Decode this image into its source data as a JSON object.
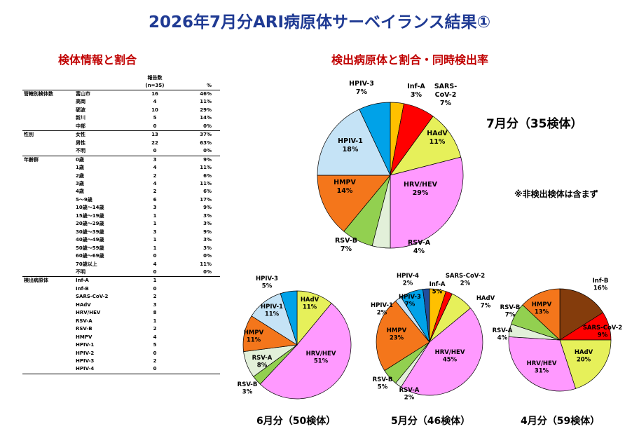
{
  "title": "2026年7月分ARI病原体サーベイランス結果①",
  "sections": {
    "left": "検体情報と割合",
    "right": "検出病原体と割合・同時検出率"
  },
  "table": {
    "header_count_line1": "報告数",
    "header_count_line2": "(n=35)",
    "header_pct": "%",
    "rows": [
      {
        "group": "管轄別検体数",
        "cat": "富山市",
        "n": "16",
        "pct": "46%"
      },
      {
        "group": "",
        "cat": "高岡",
        "n": "4",
        "pct": "11%"
      },
      {
        "group": "",
        "cat": "砺波",
        "n": "10",
        "pct": "29%"
      },
      {
        "group": "",
        "cat": "新川",
        "n": "5",
        "pct": "14%"
      },
      {
        "group": "",
        "cat": "中部",
        "n": "0",
        "pct": "0%"
      },
      {
        "group": "性別",
        "cat": "女性",
        "n": "13",
        "pct": "37%"
      },
      {
        "group": "",
        "cat": "男性",
        "n": "22",
        "pct": "63%"
      },
      {
        "group": "",
        "cat": "不明",
        "n": "0",
        "pct": "0%"
      },
      {
        "group": "年齢群",
        "cat": "0歳",
        "n": "3",
        "pct": "9%"
      },
      {
        "group": "",
        "cat": "1歳",
        "n": "4",
        "pct": "11%"
      },
      {
        "group": "",
        "cat": "2歳",
        "n": "2",
        "pct": "6%"
      },
      {
        "group": "",
        "cat": "3歳",
        "n": "4",
        "pct": "11%"
      },
      {
        "group": "",
        "cat": "4歳",
        "n": "2",
        "pct": "6%"
      },
      {
        "group": "",
        "cat": "5～9歳",
        "n": "6",
        "pct": "17%"
      },
      {
        "group": "",
        "cat": "10歳～14歳",
        "n": "3",
        "pct": "9%"
      },
      {
        "group": "",
        "cat": "15歳～19歳",
        "n": "1",
        "pct": "3%"
      },
      {
        "group": "",
        "cat": "20歳～29歳",
        "n": "1",
        "pct": "3%"
      },
      {
        "group": "",
        "cat": "30歳～39歳",
        "n": "3",
        "pct": "9%"
      },
      {
        "group": "",
        "cat": "40歳～49歳",
        "n": "1",
        "pct": "3%"
      },
      {
        "group": "",
        "cat": "50歳～59歳",
        "n": "1",
        "pct": "3%"
      },
      {
        "group": "",
        "cat": "60歳～69歳",
        "n": "0",
        "pct": "0%"
      },
      {
        "group": "",
        "cat": "70歳以上",
        "n": "4",
        "pct": "11%"
      },
      {
        "group": "",
        "cat": "不明",
        "n": "0",
        "pct": "0%"
      },
      {
        "group": "検出病原体",
        "cat": "Inf-A",
        "n": "1",
        "pct": ""
      },
      {
        "group": "",
        "cat": "Inf-B",
        "n": "0",
        "pct": ""
      },
      {
        "group": "",
        "cat": "SARS-CoV-2",
        "n": "2",
        "pct": ""
      },
      {
        "group": "",
        "cat": "HAdV",
        "n": "3",
        "pct": ""
      },
      {
        "group": "",
        "cat": "HRV/HEV",
        "n": "8",
        "pct": ""
      },
      {
        "group": "",
        "cat": "RSV-A",
        "n": "1",
        "pct": ""
      },
      {
        "group": "",
        "cat": "RSV-B",
        "n": "2",
        "pct": ""
      },
      {
        "group": "",
        "cat": "HMPV",
        "n": "4",
        "pct": ""
      },
      {
        "group": "",
        "cat": "HPIV-1",
        "n": "5",
        "pct": ""
      },
      {
        "group": "",
        "cat": "HPIV-2",
        "n": "0",
        "pct": ""
      },
      {
        "group": "",
        "cat": "HPIV-3",
        "n": "2",
        "pct": ""
      },
      {
        "group": "",
        "cat": "HPIV-4",
        "n": "0",
        "pct": ""
      }
    ]
  },
  "notes": {
    "month7": "7月分（35検体）",
    "excluded": "※非検出検体は含まず"
  },
  "captions": {
    "june": "6月分（50検体）",
    "may": "5月分（46検体）",
    "april": "4月分（59検体）"
  },
  "colors": {
    "Inf-A": "#ffc000",
    "Inf-B": "#843c0c",
    "SARS-CoV-2": "#ff0000",
    "HAdV": "#e6f05a",
    "HRV/HEV": "#ff99ff",
    "RSV-A": "#e2f0d9",
    "RSV-B": "#92d050",
    "HMPV": "#f4761b",
    "HPIV-1": "#c5e3f6",
    "HPIV-3": "#00a2e8",
    "HPIV-4": "#1f4e9e"
  },
  "chart_data": [
    {
      "type": "pie",
      "id": "july",
      "slices": [
        {
          "label": "Inf-A",
          "value": 3,
          "text": "Inf-A\n3%"
        },
        {
          "label": "SARS-CoV-2",
          "value": 7,
          "text": "SARS-\nCoV-2\n7%"
        },
        {
          "label": "HAdV",
          "value": 11,
          "text": "HAdV\n11%"
        },
        {
          "label": "HRV/HEV",
          "value": 29,
          "text": "HRV/HEV\n29%"
        },
        {
          "label": "RSV-A",
          "value": 4,
          "text": "RSV-A\n4%"
        },
        {
          "label": "RSV-B",
          "value": 7,
          "text": "RSV-B\n7%"
        },
        {
          "label": "HMPV",
          "value": 14,
          "text": "HMPV\n14%"
        },
        {
          "label": "HPIV-1",
          "value": 18,
          "text": "HPIV-1\n18%"
        },
        {
          "label": "HPIV-3",
          "value": 7,
          "text": "HPIV-3\n7%"
        }
      ]
    },
    {
      "type": "pie",
      "id": "june",
      "slices": [
        {
          "label": "HAdV",
          "value": 11,
          "text": "HAdV\n11%"
        },
        {
          "label": "HRV/HEV",
          "value": 51,
          "text": "HRV/HEV\n51%"
        },
        {
          "label": "RSV-B",
          "value": 3,
          "text": "RSV-B\n3%"
        },
        {
          "label": "RSV-A",
          "value": 8,
          "text": "RSV-A\n8%"
        },
        {
          "label": "HMPV",
          "value": 11,
          "text": "HMPV\n11%"
        },
        {
          "label": "HPIV-1",
          "value": 11,
          "text": "HPIV-1\n11%"
        },
        {
          "label": "HPIV-3",
          "value": 5,
          "text": "HPIV-3\n5%"
        }
      ]
    },
    {
      "type": "pie",
      "id": "may",
      "slices": [
        {
          "label": "Inf-A",
          "value": 5,
          "text": "Inf-A\n5%"
        },
        {
          "label": "SARS-CoV-2",
          "value": 2,
          "text": "SARS-CoV-2\n2%"
        },
        {
          "label": "HAdV",
          "value": 7,
          "text": "HAdV\n7%"
        },
        {
          "label": "HRV/HEV",
          "value": 45,
          "text": "HRV/HEV\n45%"
        },
        {
          "label": "RSV-A",
          "value": 2,
          "text": "RSV-A\n2%"
        },
        {
          "label": "RSV-B",
          "value": 5,
          "text": "RSV-B\n5%"
        },
        {
          "label": "HMPV",
          "value": 23,
          "text": "HMPV\n23%"
        },
        {
          "label": "HPIV-1",
          "value": 2,
          "text": "HPIV-1\n2%"
        },
        {
          "label": "HPIV-3",
          "value": 7,
          "text": "HPIV-3\n7%"
        },
        {
          "label": "HPIV-4",
          "value": 2,
          "text": "HPIV-4\n2%"
        }
      ]
    },
    {
      "type": "pie",
      "id": "april",
      "slices": [
        {
          "label": "Inf-B",
          "value": 16,
          "text": "Inf-B\n16%"
        },
        {
          "label": "SARS-CoV-2",
          "value": 9,
          "text": "SARS-CoV-2\n9%"
        },
        {
          "label": "HAdV",
          "value": 20,
          "text": "HAdV\n20%"
        },
        {
          "label": "HRV/HEV",
          "value": 31,
          "text": "HRV/HEV\n31%"
        },
        {
          "label": "RSV-A",
          "value": 4,
          "text": "RSV-A\n4%"
        },
        {
          "label": "RSV-B",
          "value": 7,
          "text": "RSV-B\n7%"
        },
        {
          "label": "HMPV",
          "value": 13,
          "text": "HMPV\n13%"
        }
      ]
    }
  ]
}
